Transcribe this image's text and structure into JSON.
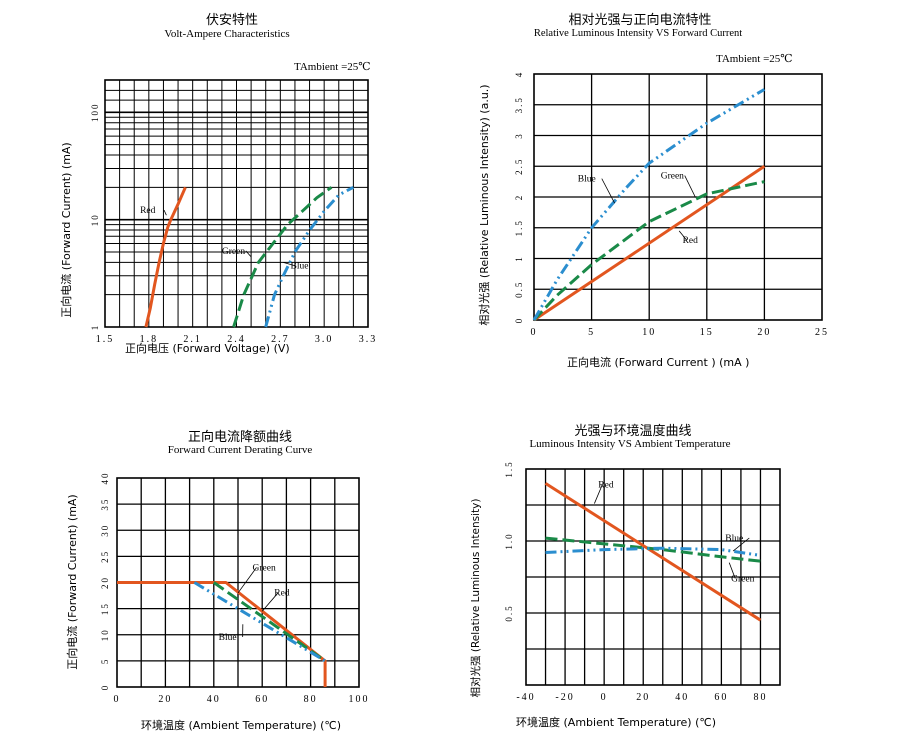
{
  "chart_data": [
    {
      "id": "vi",
      "type": "line",
      "title_cn": "伏安特性",
      "title_en": "Volt-Ampere Characteristics",
      "xlabel": "正向电压 (Forward  Voltage) (V)",
      "ylabel": "正向电流 (Forward Current) (mA)",
      "xlim": [
        1.5,
        3.3
      ],
      "ylim": [
        1,
        200
      ],
      "yscale": "log",
      "xticks": [
        1.5,
        1.8,
        2.1,
        2.4,
        2.7,
        3.0,
        3.3
      ],
      "xtick_labels": [
        "1.5",
        "1.8",
        "2.1",
        "2.4",
        "2.7",
        "3.0",
        "3.3"
      ],
      "yticks": [
        1,
        10,
        100
      ],
      "ytick_labels": [
        "1",
        "10",
        "100"
      ],
      "annotation": "TAmbient =25℃",
      "series": [
        {
          "name": "Red",
          "color": "#e2561f",
          "dash": "solid",
          "points": [
            [
              1.78,
              1
            ],
            [
              1.81,
              1.5
            ],
            [
              1.84,
              2.5
            ],
            [
              1.87,
              4
            ],
            [
              1.9,
              6
            ],
            [
              1.93,
              8.5
            ],
            [
              1.95,
              10
            ],
            [
              2.0,
              14
            ],
            [
              2.05,
              20
            ]
          ]
        },
        {
          "name": "Green",
          "color": "#1a8a48",
          "dash": "dash",
          "points": [
            [
              2.38,
              1
            ],
            [
              2.45,
              2
            ],
            [
              2.55,
              4
            ],
            [
              2.65,
              6
            ],
            [
              2.75,
              9
            ],
            [
              2.85,
              12
            ],
            [
              2.95,
              16
            ],
            [
              3.05,
              20
            ]
          ]
        },
        {
          "name": "Blue",
          "color": "#2b8ecf",
          "dash": "dashdot",
          "points": [
            [
              2.6,
              1
            ],
            [
              2.66,
              2
            ],
            [
              2.72,
              3
            ],
            [
              2.8,
              5
            ],
            [
              2.9,
              8
            ],
            [
              3.0,
              12
            ],
            [
              3.1,
              17
            ],
            [
              3.2,
              20
            ]
          ]
        }
      ],
      "labels": [
        {
          "text": "Red",
          "at": [
            1.74,
            11.5
          ],
          "to": [
            1.92,
            11
          ]
        },
        {
          "text": "Green",
          "at": [
            2.3,
            4.8
          ],
          "to": [
            2.5,
            4.5
          ]
        },
        {
          "text": "Blue",
          "at": [
            2.77,
            3.5
          ],
          "to": [
            2.72,
            4
          ]
        }
      ]
    },
    {
      "id": "li",
      "type": "line",
      "title_cn": "相对光强与正向电流特性",
      "title_en": "Relative  Luminous  Intensity  VS  Forward  Current",
      "xlabel": "正向电流 (Forward  Current ) (mA )",
      "ylabel": "相对光强 (Relative Luminous  Intensity) (a.u.)",
      "xlim": [
        0,
        25
      ],
      "ylim": [
        0,
        4
      ],
      "xticks": [
        0,
        5,
        10,
        15,
        20,
        25
      ],
      "xtick_labels": [
        "0",
        "5",
        "10",
        "15",
        "20",
        "25"
      ],
      "yticks": [
        0,
        0.5,
        1,
        1.5,
        2,
        2.5,
        3,
        3.5,
        4
      ],
      "ytick_labels": [
        "0",
        "0.5",
        "1",
        "1.5",
        "2",
        "2.5",
        "3",
        "3.5",
        "4"
      ],
      "annotation": "TAmbient =25℃",
      "series": [
        {
          "name": "Red",
          "color": "#e2561f",
          "dash": "solid",
          "points": [
            [
              0,
              0
            ],
            [
              20,
              2.5
            ]
          ]
        },
        {
          "name": "Green",
          "color": "#1a8a48",
          "dash": "dash",
          "points": [
            [
              0,
              0
            ],
            [
              2,
              0.4
            ],
            [
              5,
              0.9
            ],
            [
              10,
              1.6
            ],
            [
              15,
              2.05
            ],
            [
              20,
              2.25
            ]
          ]
        },
        {
          "name": "Blue",
          "color": "#2b8ecf",
          "dash": "dashdot",
          "points": [
            [
              0,
              0
            ],
            [
              2,
              0.65
            ],
            [
              5,
              1.5
            ],
            [
              8,
              2.15
            ],
            [
              10,
              2.55
            ],
            [
              15,
              3.2
            ],
            [
              20,
              3.75
            ]
          ]
        }
      ],
      "labels": [
        {
          "text": "Blue",
          "at": [
            3.8,
            2.25
          ],
          "to": [
            7,
            1.9
          ]
        },
        {
          "text": "Green",
          "at": [
            11,
            2.3
          ],
          "to": [
            14,
            2.0
          ]
        },
        {
          "text": "Red",
          "at": [
            12.9,
            1.25
          ],
          "to": [
            12.6,
            1.45
          ]
        }
      ]
    },
    {
      "id": "derate",
      "type": "line",
      "title_cn": "正向电流降额曲线",
      "title_en": "Forward  Current  Derating  Curve",
      "xlabel": "环境温度 (Ambient  Temperature) (℃)",
      "ylabel": "正向电流 (Forward  Current) (mA)",
      "xlim": [
        0,
        100
      ],
      "ylim": [
        0,
        40
      ],
      "xticks": [
        0,
        20,
        40,
        60,
        80,
        100
      ],
      "xtick_labels": [
        "0",
        "20",
        "40",
        "60",
        "80",
        "100"
      ],
      "yticks": [
        0,
        5,
        10,
        15,
        20,
        25,
        30,
        35,
        40
      ],
      "ytick_labels": [
        "0",
        "5",
        "10",
        "15",
        "20",
        "25",
        "30",
        "35",
        "40"
      ],
      "series": [
        {
          "name": "Red",
          "color": "#e2561f",
          "dash": "solid",
          "points": [
            [
              0,
              20
            ],
            [
              45,
              20
            ],
            [
              86,
              5
            ],
            [
              86,
              0
            ]
          ]
        },
        {
          "name": "Green",
          "color": "#1a8a48",
          "dash": "dash",
          "points": [
            [
              40,
              20
            ],
            [
              86,
              5
            ]
          ]
        },
        {
          "name": "Blue",
          "color": "#2b8ecf",
          "dash": "dashdot",
          "points": [
            [
              32,
              20
            ],
            [
              86,
              5
            ]
          ]
        }
      ],
      "labels": [
        {
          "text": "Green",
          "at": [
            56,
            22.3
          ],
          "to": [
            50,
            18
          ]
        },
        {
          "text": "Red",
          "at": [
            65,
            17.5
          ],
          "to": [
            60,
            14.5
          ]
        },
        {
          "text": "Blue",
          "at": [
            42,
            9
          ],
          "to": [
            52,
            12
          ]
        }
      ]
    },
    {
      "id": "temp",
      "type": "line",
      "title_cn": "光强与环境温度曲线",
      "title_en": "Luminous  Intensity  VS  Ambient  Temperature",
      "xlabel": "环境温度 (Ambient  Temperature) (℃)",
      "ylabel": "相对光强 (Relative  Luminous  Intensity)",
      "xlim": [
        -40,
        90
      ],
      "ylim": [
        0,
        1.5
      ],
      "xticks": [
        -40,
        -20,
        0,
        20,
        40,
        60,
        80
      ],
      "xtick_labels": [
        "-40",
        "-20",
        "0",
        "20",
        "40",
        "60",
        "80"
      ],
      "yticks": [
        0.5,
        1.0,
        1.5
      ],
      "ytick_labels": [
        "0.5",
        "1.0",
        "1.5"
      ],
      "series": [
        {
          "name": "Red",
          "color": "#e2561f",
          "dash": "solid",
          "points": [
            [
              -30,
              1.4
            ],
            [
              80,
              0.45
            ]
          ]
        },
        {
          "name": "Green",
          "color": "#1a8a48",
          "dash": "dash",
          "points": [
            [
              -30,
              1.02
            ],
            [
              0,
              0.98
            ],
            [
              30,
              0.94
            ],
            [
              60,
              0.89
            ],
            [
              80,
              0.86
            ]
          ]
        },
        {
          "name": "Blue",
          "color": "#2b8ecf",
          "dash": "dashdot",
          "points": [
            [
              -30,
              0.92
            ],
            [
              0,
              0.94
            ],
            [
              30,
              0.95
            ],
            [
              60,
              0.94
            ],
            [
              80,
              0.9
            ]
          ]
        }
      ],
      "labels": [
        {
          "text": "Red",
          "at": [
            -3,
            1.37
          ],
          "to": [
            -5,
            1.26
          ]
        },
        {
          "text": "Blue",
          "at": [
            62,
            1.0
          ],
          "to": [
            66,
            0.93
          ]
        },
        {
          "text": "Green",
          "at": [
            65,
            0.72
          ],
          "to": [
            64,
            0.85
          ]
        }
      ]
    }
  ]
}
